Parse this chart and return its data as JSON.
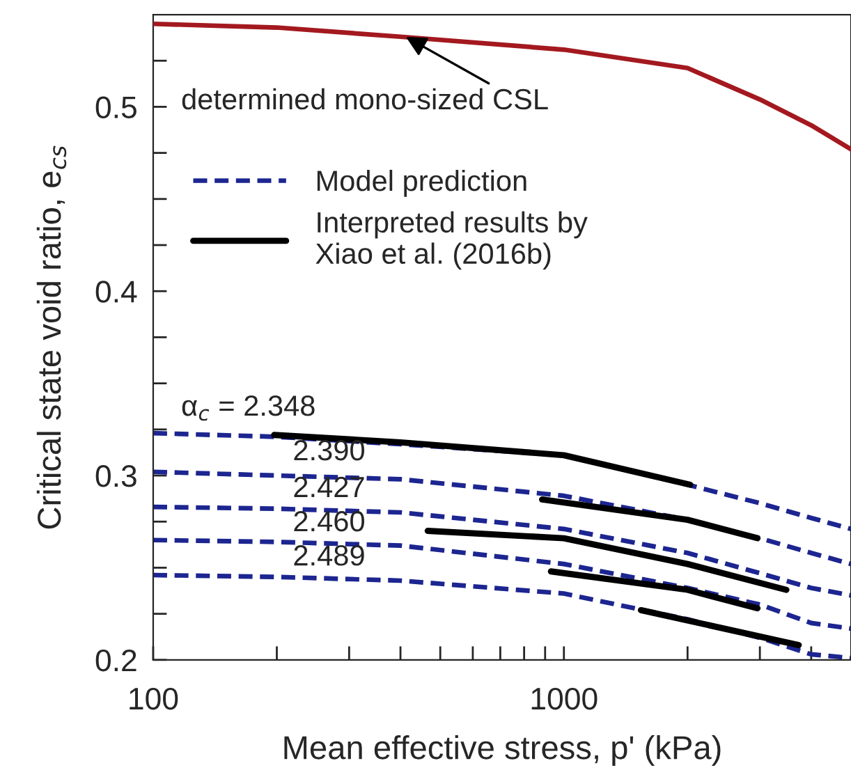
{
  "chart_data": {
    "type": "line",
    "xlabel": "Mean effective stress, p' (kPa)",
    "ylabel": "Critical state void ratio, e$_{cs}$",
    "log": "x",
    "xlim": [
      100,
      5000
    ],
    "xticks": [
      100,
      {
        "value": 200,
        "label": null
      },
      {
        "value": 300,
        "label": null
      },
      {
        "value": 400,
        "label": null
      },
      {
        "value": 500,
        "label": null
      },
      {
        "value": 600,
        "label": null
      },
      {
        "value": 700,
        "label": null
      },
      {
        "value": 800,
        "label": null
      },
      {
        "value": 900,
        "label": null
      },
      1000,
      {
        "value": 2000,
        "label": null
      },
      {
        "value": 3000,
        "label": null
      },
      {
        "value": 4000,
        "label": null
      }
    ],
    "ylim": [
      0.2,
      0.55
    ],
    "yticks": [
      {
        "value": 0.2,
        "label": "0.2"
      },
      {
        "value": 0.225,
        "label": null
      },
      {
        "value": 0.25,
        "label": null
      },
      {
        "value": 0.275,
        "label": null
      },
      {
        "value": 0.3,
        "label": "0.3"
      },
      {
        "value": 0.325,
        "label": null
      },
      {
        "value": 0.35,
        "label": null
      },
      {
        "value": 0.375,
        "label": null
      },
      {
        "value": 0.4,
        "label": "0.4"
      },
      {
        "value": 0.425,
        "label": null
      },
      {
        "value": 0.45,
        "label": null
      },
      {
        "value": 0.475,
        "label": null
      },
      {
        "value": 0.5,
        "label": "0.5"
      },
      {
        "value": 0.525,
        "label": null
      }
    ],
    "grid": false,
    "legend": "top left",
    "marker": "none",
    "series": [
      {
        "color": "#a3191f",
        "line_style": "solid",
        "x": [
          100,
          200,
          400,
          1000,
          2000,
          3000,
          4000,
          5000
        ],
        "values": [
          0.545,
          0.543,
          0.538,
          0.531,
          0.521,
          0.504,
          0.49,
          0.477
        ]
      },
      {
        "name": "Model prediction",
        "color": "#1c2590",
        "line_style": "dashed",
        "x": [
          100,
          200,
          400,
          1000,
          2000,
          3000,
          4000,
          5000
        ],
        "values": [
          0.323,
          0.321,
          0.317,
          0.311,
          0.295,
          0.285,
          0.277,
          0.271
        ]
      },
      {
        "color": "#1c2590",
        "line_style": "dashed",
        "x": [
          100,
          200,
          400,
          1000,
          2000,
          3000,
          4000,
          5000
        ],
        "values": [
          0.302,
          0.3,
          0.298,
          0.289,
          0.276,
          0.266,
          0.258,
          0.252
        ]
      },
      {
        "color": "#1c2590",
        "line_style": "dashed",
        "x": [
          100,
          200,
          400,
          1000,
          2000,
          3000,
          4000,
          5000
        ],
        "values": [
          0.283,
          0.282,
          0.28,
          0.271,
          0.258,
          0.247,
          0.239,
          0.235
        ]
      },
      {
        "color": "#1c2590",
        "line_style": "dashed",
        "x": [
          100,
          200,
          400,
          1000,
          2000,
          3000,
          4000,
          5000
        ],
        "values": [
          0.265,
          0.264,
          0.262,
          0.252,
          0.239,
          0.23,
          0.22,
          0.217
        ]
      },
      {
        "color": "#1c2590",
        "line_style": "dashed",
        "x": [
          100,
          200,
          400,
          1000,
          2000,
          3000,
          4000,
          5000
        ],
        "values": [
          0.246,
          0.245,
          0.243,
          0.236,
          0.222,
          0.212,
          0.203,
          0.201
        ]
      },
      {
        "name": "Interpreted results by\nXiao et al. (2016b)",
        "color": "#000000",
        "line_style": "solid",
        "x": [
          197,
          400,
          1000,
          2030
        ],
        "values": [
          0.322,
          0.318,
          0.311,
          0.295
        ]
      },
      {
        "color": "#000000",
        "line_style": "solid",
        "x": [
          885,
          2000,
          2960
        ],
        "values": [
          0.287,
          0.276,
          0.266
        ]
      },
      {
        "color": "#000000",
        "line_style": "solid",
        "x": [
          466,
          1000,
          2000,
          3480
        ],
        "values": [
          0.27,
          0.266,
          0.252,
          0.238
        ]
      },
      {
        "color": "#000000",
        "line_style": "solid",
        "x": [
          930,
          2000,
          2960
        ],
        "values": [
          0.248,
          0.238,
          0.228
        ]
      },
      {
        "color": "#000000",
        "line_style": "solid",
        "x": [
          1540,
          3730
        ],
        "values": [
          0.227,
          0.208
        ]
      }
    ],
    "annotations": [
      {
        "text": "determined mono-sized CSL",
        "x": 412,
        "y": 0.538
      },
      "α$_{c}$ = 2.348",
      "2.390",
      "2.427",
      "2.460",
      "2.489"
    ]
  }
}
